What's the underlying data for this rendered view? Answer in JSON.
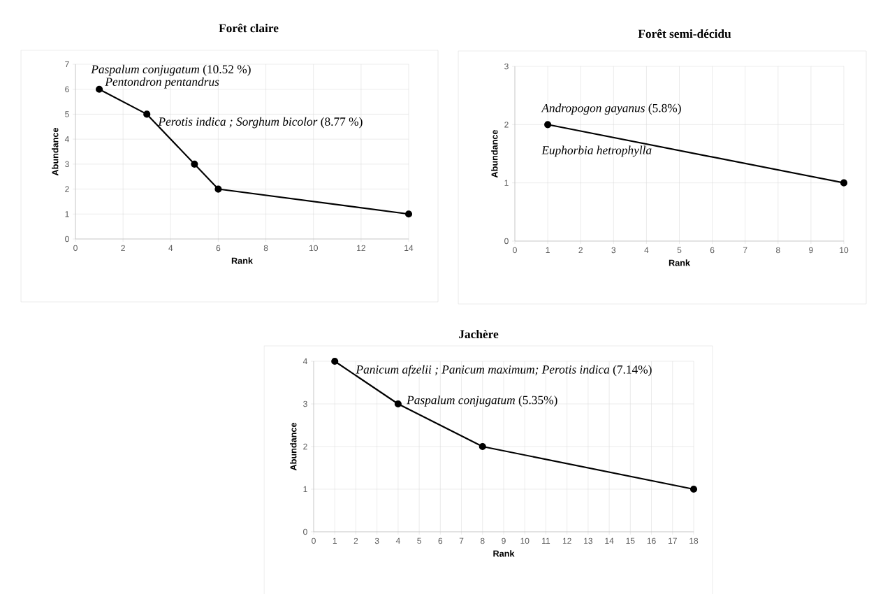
{
  "chart_data": [
    {
      "type": "line",
      "title": "Forêt claire",
      "xlabel": "Rank",
      "ylabel": "Abundance",
      "x": [
        1,
        3,
        5,
        6,
        14
      ],
      "series": [
        {
          "color": "#000000",
          "values": [
            6,
            5,
            3,
            2,
            1
          ]
        }
      ],
      "xlim": [
        0,
        14
      ],
      "ylim": [
        0,
        7
      ],
      "xticks": [
        0,
        2,
        4,
        6,
        8,
        10,
        12,
        14
      ],
      "yticks": [
        0,
        1,
        2,
        3,
        4,
        5,
        6,
        7
      ],
      "grid": true,
      "marker": "circle",
      "annotations": [
        {
          "text": "*Paspalum conjugatum*  (10.52 %)",
          "x": 1,
          "y": 6
        },
        {
          "text": "*Pentondron pentandrus*",
          "x": 1,
          "y": 6
        },
        {
          "text": "*Perotis indica ; Sorghum bicolor* (8.77 %)",
          "x": 3,
          "y": 5
        }
      ]
    },
    {
      "type": "line",
      "title": "Forêt semi-décidu",
      "xlabel": "Rank",
      "ylabel": "Abundance",
      "x": [
        1,
        10
      ],
      "series": [
        {
          "color": "#000000",
          "values": [
            2,
            1
          ]
        }
      ],
      "xlim": [
        0,
        10
      ],
      "ylim": [
        0,
        3
      ],
      "xticks": [
        0,
        1,
        2,
        3,
        4,
        5,
        6,
        7,
        8,
        9,
        10
      ],
      "yticks": [
        0,
        1,
        2,
        3
      ],
      "grid": true,
      "marker": "circle",
      "annotations": [
        {
          "text": "*Andropogon gayanus* (5.8%)",
          "x": 1,
          "y": 2
        },
        {
          "text": "*Euphorbia hetrophylla*",
          "x": 1,
          "y": 2
        }
      ]
    },
    {
      "type": "line",
      "title": "Jachère",
      "xlabel": "Rank",
      "ylabel": "Abundance",
      "x": [
        1,
        4,
        8,
        18
      ],
      "series": [
        {
          "color": "#000000",
          "values": [
            4,
            3,
            2,
            1
          ]
        }
      ],
      "xlim": [
        0,
        18
      ],
      "ylim": [
        0,
        4
      ],
      "xticks": [
        0,
        1,
        2,
        3,
        4,
        5,
        6,
        7,
        8,
        9,
        10,
        11,
        12,
        13,
        14,
        15,
        16,
        17,
        18
      ],
      "yticks": [
        0,
        1,
        2,
        3,
        4
      ],
      "grid": true,
      "marker": "circle",
      "annotations": [
        {
          "text": "*Panicum afzelii ; Panicum maximum; Perotis indica* (7.14%)",
          "x": 1,
          "y": 4
        },
        {
          "text": "*Paspalum conjugatum* (5.35%)",
          "x": 4,
          "y": 3
        }
      ]
    }
  ]
}
